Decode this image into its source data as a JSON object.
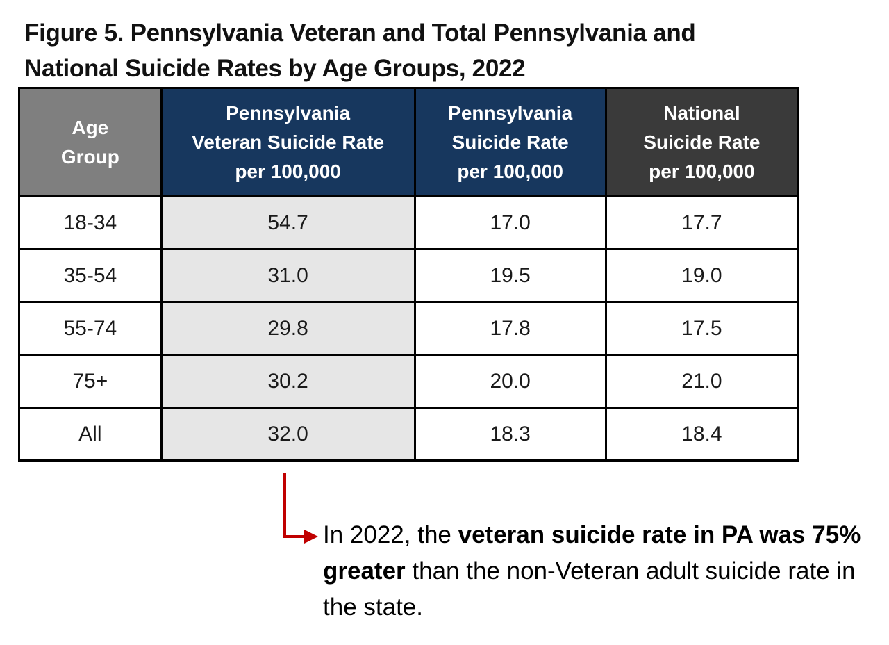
{
  "figure": {
    "title_line1": "Figure 5. Pennsylvania Veteran and Total Pennsylvania and",
    "title_line2": "National Suicide Rates by Age Groups, 2022"
  },
  "colors": {
    "age_header_bg": "#7f7f7f",
    "pa_header_bg": "#17375e",
    "national_header_bg": "#3a3a3a",
    "veteran_column_bg": "#e6e6e6",
    "arrow": "#c00000"
  },
  "chart_data": {
    "type": "table",
    "title": "Figure 5. Pennsylvania Veteran and Total Pennsylvania and National Suicide Rates by Age Groups, 2022",
    "columns": [
      {
        "lines": [
          "Age",
          "Group"
        ]
      },
      {
        "lines": [
          "Pennsylvania",
          "Veteran Suicide Rate",
          "per 100,000"
        ]
      },
      {
        "lines": [
          "Pennsylvania",
          "Suicide Rate",
          "per 100,000"
        ]
      },
      {
        "lines": [
          "National",
          "Suicide Rate",
          "per 100,000"
        ]
      }
    ],
    "rows": [
      [
        "18-34",
        "54.7",
        "17.0",
        "17.7"
      ],
      [
        "35-54",
        "31.0",
        "19.5",
        "19.0"
      ],
      [
        "55-74",
        "29.8",
        "17.8",
        "17.5"
      ],
      [
        "75+",
        "30.2",
        "20.0",
        "21.0"
      ],
      [
        "All",
        "32.0",
        "18.3",
        "18.4"
      ]
    ]
  },
  "note": {
    "lead": "In 2022, the ",
    "bold": "veteran suicide rate in PA was 75% greater",
    "tail": " than the non-Veteran adult suicide rate in the state."
  }
}
